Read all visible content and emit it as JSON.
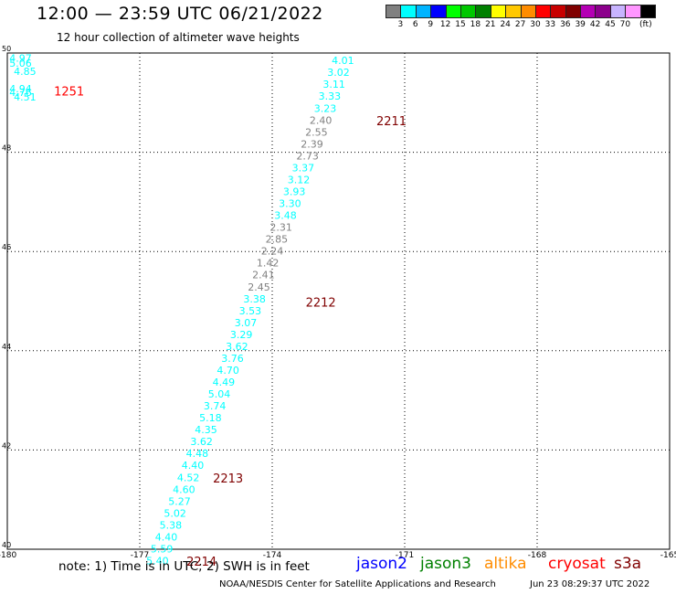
{
  "header": {
    "title": "12:00 — 23:59 UTC 06/21/2022",
    "subtitle": "12 hour collection of altimeter wave heights"
  },
  "colorbar": {
    "colors": [
      "#808080",
      "#00ffff",
      "#00b4ff",
      "#0000ff",
      "#00ff00",
      "#00c800",
      "#008000",
      "#ffff00",
      "#ffc800",
      "#ff8c00",
      "#ff0000",
      "#c80000",
      "#800000",
      "#b400b4",
      "#8c008c",
      "#c8b4ff",
      "#ff96ff",
      "#000000"
    ],
    "labels": [
      "3",
      "6",
      "9",
      "12",
      "15",
      "18",
      "21",
      "24",
      "27",
      "30",
      "33",
      "36",
      "39",
      "42",
      "45",
      "70",
      "(ft)"
    ]
  },
  "chart_data": {
    "type": "scatter",
    "xlim": [
      -180,
      -165
    ],
    "ylim": [
      40,
      50
    ],
    "x_ticks": [
      "-180",
      "-177",
      "-174",
      "-171",
      "-168",
      "-165"
    ],
    "y_ticks": [
      "50",
      "48",
      "46",
      "44",
      "42",
      "40"
    ],
    "grid": true,
    "swh_points": [
      {
        "lon": -179.7,
        "lat": 49.9,
        "swh": "4.97",
        "color": "#00ffff"
      },
      {
        "lon": -179.7,
        "lat": 49.8,
        "swh": "5.06",
        "color": "#00ffff"
      },
      {
        "lon": -179.6,
        "lat": 49.63,
        "swh": "4.85",
        "color": "#00ffff"
      },
      {
        "lon": -179.7,
        "lat": 49.28,
        "swh": "4.94",
        "color": "#00ffff"
      },
      {
        "lon": -179.7,
        "lat": 49.21,
        "swh": "4.76",
        "color": "#00ffff"
      },
      {
        "lon": -179.6,
        "lat": 49.12,
        "swh": "4.51",
        "color": "#00ffff"
      },
      {
        "lon": -172.4,
        "lat": 49.85,
        "swh": "4.01",
        "color": "#00ffff"
      },
      {
        "lon": -172.5,
        "lat": 49.61,
        "swh": "3.02",
        "color": "#00ffff"
      },
      {
        "lon": -172.6,
        "lat": 49.37,
        "swh": "3.11",
        "color": "#00ffff"
      },
      {
        "lon": -172.7,
        "lat": 49.13,
        "swh": "3.33",
        "color": "#00ffff"
      },
      {
        "lon": -172.8,
        "lat": 48.89,
        "swh": "3.23",
        "color": "#00ffff"
      },
      {
        "lon": -172.9,
        "lat": 48.65,
        "swh": "2.40",
        "color": "#808080"
      },
      {
        "lon": -173.0,
        "lat": 48.41,
        "swh": "2.55",
        "color": "#808080"
      },
      {
        "lon": -173.1,
        "lat": 48.17,
        "swh": "2.39",
        "color": "#808080"
      },
      {
        "lon": -173.2,
        "lat": 47.93,
        "swh": "2.73",
        "color": "#808080"
      },
      {
        "lon": -173.3,
        "lat": 47.69,
        "swh": "3.37",
        "color": "#00ffff"
      },
      {
        "lon": -173.4,
        "lat": 47.45,
        "swh": "3.12",
        "color": "#00ffff"
      },
      {
        "lon": -173.5,
        "lat": 47.21,
        "swh": "3.93",
        "color": "#00ffff"
      },
      {
        "lon": -173.6,
        "lat": 46.97,
        "swh": "3.30",
        "color": "#00ffff"
      },
      {
        "lon": -173.7,
        "lat": 46.73,
        "swh": "3.48",
        "color": "#00ffff"
      },
      {
        "lon": -173.8,
        "lat": 46.49,
        "swh": "2.31",
        "color": "#808080"
      },
      {
        "lon": -173.9,
        "lat": 46.25,
        "swh": "2.85",
        "color": "#808080"
      },
      {
        "lon": -174.0,
        "lat": 46.01,
        "swh": "2.24",
        "color": "#808080"
      },
      {
        "lon": -174.1,
        "lat": 45.77,
        "swh": "1.42",
        "color": "#808080"
      },
      {
        "lon": -174.2,
        "lat": 45.53,
        "swh": "2.41",
        "color": "#808080"
      },
      {
        "lon": -174.3,
        "lat": 45.29,
        "swh": "2.45",
        "color": "#808080"
      },
      {
        "lon": -174.4,
        "lat": 45.05,
        "swh": "3.38",
        "color": "#00ffff"
      },
      {
        "lon": -174.5,
        "lat": 44.81,
        "swh": "3.53",
        "color": "#00ffff"
      },
      {
        "lon": -174.6,
        "lat": 44.57,
        "swh": "3.07",
        "color": "#00ffff"
      },
      {
        "lon": -174.7,
        "lat": 44.33,
        "swh": "3.29",
        "color": "#00ffff"
      },
      {
        "lon": -174.8,
        "lat": 44.09,
        "swh": "3.62",
        "color": "#00ffff"
      },
      {
        "lon": -174.9,
        "lat": 43.85,
        "swh": "3.76",
        "color": "#00ffff"
      },
      {
        "lon": -175.0,
        "lat": 43.61,
        "swh": "4.70",
        "color": "#00ffff"
      },
      {
        "lon": -175.1,
        "lat": 43.37,
        "swh": "4.49",
        "color": "#00ffff"
      },
      {
        "lon": -175.2,
        "lat": 43.13,
        "swh": "5.04",
        "color": "#00ffff"
      },
      {
        "lon": -175.3,
        "lat": 42.89,
        "swh": "3.74",
        "color": "#00ffff"
      },
      {
        "lon": -175.4,
        "lat": 42.65,
        "swh": "5.18",
        "color": "#00ffff"
      },
      {
        "lon": -175.5,
        "lat": 42.41,
        "swh": "4.35",
        "color": "#00ffff"
      },
      {
        "lon": -175.6,
        "lat": 42.17,
        "swh": "3.62",
        "color": "#00ffff"
      },
      {
        "lon": -175.7,
        "lat": 41.93,
        "swh": "4.48",
        "color": "#00ffff"
      },
      {
        "lon": -175.8,
        "lat": 41.69,
        "swh": "4.40",
        "color": "#00ffff"
      },
      {
        "lon": -175.9,
        "lat": 41.45,
        "swh": "4.52",
        "color": "#00ffff"
      },
      {
        "lon": -176.0,
        "lat": 41.21,
        "swh": "4.60",
        "color": "#00ffff"
      },
      {
        "lon": -176.1,
        "lat": 40.97,
        "swh": "5.27",
        "color": "#00ffff"
      },
      {
        "lon": -176.2,
        "lat": 40.73,
        "swh": "5.02",
        "color": "#00ffff"
      },
      {
        "lon": -176.3,
        "lat": 40.49,
        "swh": "5.38",
        "color": "#00ffff"
      },
      {
        "lon": -176.4,
        "lat": 40.25,
        "swh": "4.40",
        "color": "#00ffff"
      },
      {
        "lon": -176.5,
        "lat": 40.01,
        "swh": "5.59",
        "color": "#00ffff"
      },
      {
        "lon": -176.6,
        "lat": 39.77,
        "swh": "5.40",
        "color": "#00ffff"
      }
    ],
    "time_labels": [
      {
        "lon": -178.6,
        "lat": 49.24,
        "time": "1251",
        "color": "#ff0000"
      },
      {
        "lon": -171.3,
        "lat": 48.64,
        "time": "2211",
        "color": "#800000"
      },
      {
        "lon": -172.9,
        "lat": 44.98,
        "time": "2212",
        "color": "#800000"
      },
      {
        "lon": -175.0,
        "lat": 41.44,
        "time": "2213",
        "color": "#800000"
      },
      {
        "lon": -175.6,
        "lat": 39.76,
        "time": "2214",
        "color": "#800000"
      }
    ]
  },
  "footer": {
    "note": "note:  1) Time is in UTC;  2) SWH is in feet",
    "legend": [
      {
        "name": "jason2",
        "color": "#0000ff"
      },
      {
        "name": "jason3",
        "color": "#008000"
      },
      {
        "name": "altika",
        "color": "#ff8c00"
      },
      {
        "name": "cryosat",
        "color": "#ff0000"
      },
      {
        "name": "s3a",
        "color": "#800000"
      }
    ],
    "credit": "NOAA/NESDIS Center for Satellite Applications and Research",
    "stamp": "Jun 23 08:29:37 UTC 2022"
  }
}
